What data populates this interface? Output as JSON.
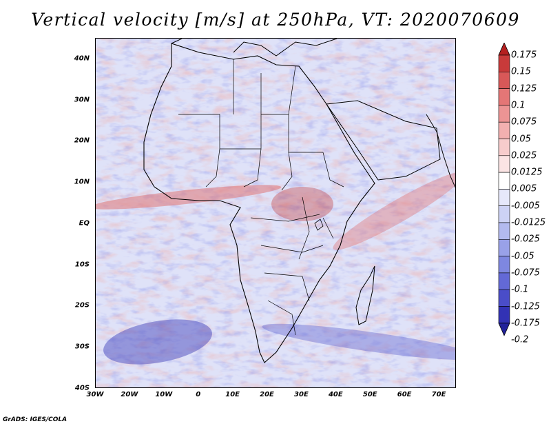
{
  "title": "Vertical velocity [m/s] at 250hPa, VT: 2020070609",
  "credit": "GrADS: IGES/COLA",
  "map": {
    "region": "Africa",
    "field": "vertical velocity",
    "lon_range": [
      -30,
      75
    ],
    "lat_range": [
      -40,
      45
    ],
    "lat_labels": [
      "40N",
      "30N",
      "20N",
      "10N",
      "EQ",
      "10S",
      "20S",
      "30S",
      "40S"
    ],
    "lat_values": [
      40,
      30,
      20,
      10,
      0,
      -10,
      -20,
      -30,
      -40
    ],
    "lon_labels": [
      "30W",
      "20W",
      "10W",
      "0",
      "10E",
      "20E",
      "30E",
      "40E",
      "50E",
      "60E",
      "70E"
    ],
    "lon_values": [
      -30,
      -20,
      -10,
      0,
      10,
      20,
      30,
      40,
      50,
      60,
      70
    ]
  },
  "colorbar": {
    "labels": [
      "0.175",
      "0.15",
      "0.125",
      "0.1",
      "0.075",
      "0.05",
      "0.025",
      "0.0125",
      "0.005",
      "-0.005",
      "-0.0125",
      "-0.025",
      "-0.05",
      "-0.075",
      "-0.1",
      "-0.125",
      "-0.175",
      "-0.2"
    ],
    "colors": [
      "#b52020",
      "#c83a3a",
      "#d85858",
      "#e47676",
      "#ec9494",
      "#f2b0b0",
      "#f7cccc",
      "#fbe4e4",
      "#ffffff",
      "#e6e8fb",
      "#cdd2f5",
      "#b3baef",
      "#99a1e8",
      "#7e87e0",
      "#6369d6",
      "#4a4dc8",
      "#3232b4",
      "#22229a"
    ]
  }
}
